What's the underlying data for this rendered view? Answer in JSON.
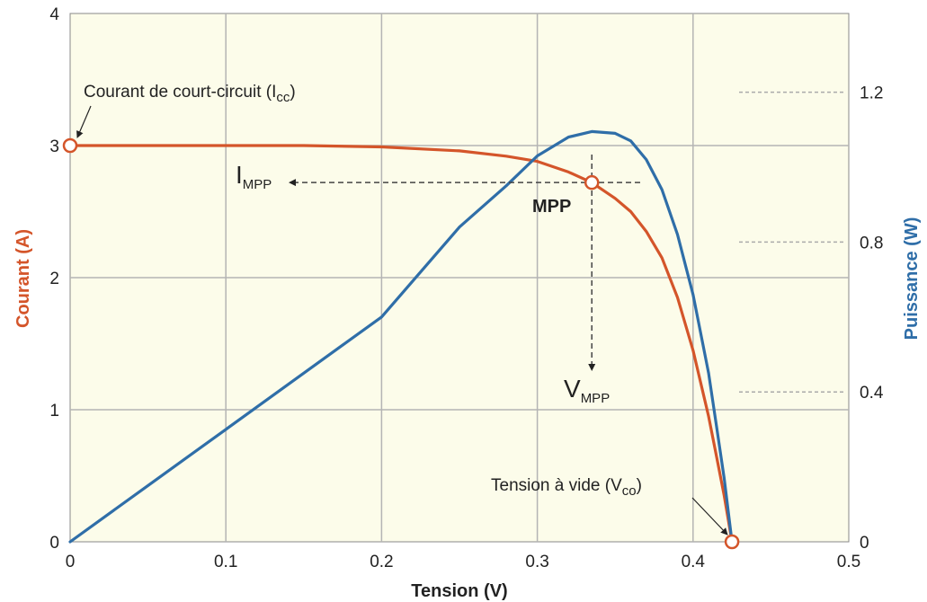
{
  "chart_data": {
    "type": "line",
    "xlabel": "Tension (V)",
    "ylabel": "Courant (A)",
    "y2label": "Puissance (W)",
    "xlim": [
      0,
      0.5
    ],
    "ylim": [
      0,
      4
    ],
    "y2lim": [
      0,
      1.41
    ],
    "x_ticks": [
      "0",
      "0.1",
      "0.2",
      "0.3",
      "0.4",
      "0.5"
    ],
    "y_ticks": [
      "0",
      "1",
      "2",
      "3",
      "4"
    ],
    "y2_ticks": [
      "0",
      "0.4",
      "0.8",
      "1.2"
    ],
    "grid": true,
    "colors": {
      "current": "#d4552a",
      "power": "#2f6ea8",
      "background": "#fcfcea",
      "grid": "#b4b4b4"
    },
    "series": [
      {
        "axis": "left",
        "color": "#d4552a",
        "x": [
          0,
          0.05,
          0.1,
          0.15,
          0.2,
          0.25,
          0.28,
          0.3,
          0.32,
          0.335,
          0.35,
          0.36,
          0.37,
          0.38,
          0.39,
          0.4,
          0.41,
          0.415,
          0.42,
          0.425
        ],
        "y": [
          3.0,
          3.0,
          3.0,
          3.0,
          2.99,
          2.96,
          2.92,
          2.88,
          2.8,
          2.72,
          2.6,
          2.5,
          2.35,
          2.15,
          1.85,
          1.45,
          0.95,
          0.65,
          0.35,
          0.0
        ]
      },
      {
        "axis": "right",
        "color": "#2f6ea8",
        "x": [
          0,
          0.05,
          0.1,
          0.15,
          0.2,
          0.25,
          0.28,
          0.3,
          0.32,
          0.335,
          0.35,
          0.36,
          0.37,
          0.38,
          0.39,
          0.4,
          0.41,
          0.415,
          0.42,
          0.425
        ],
        "y": [
          0.0,
          0.15,
          0.3,
          0.45,
          0.6,
          0.84,
          0.95,
          1.03,
          1.08,
          1.095,
          1.09,
          1.07,
          1.02,
          0.94,
          0.82,
          0.66,
          0.45,
          0.31,
          0.17,
          0.0
        ]
      }
    ],
    "points": [
      {
        "id": "icc",
        "x": 0,
        "y": 3.0
      },
      {
        "id": "mpp",
        "x": 0.335,
        "y": 2.72
      },
      {
        "id": "vco",
        "x": 0.425,
        "y": 0.0
      }
    ],
    "annotations": {
      "icc": {
        "text": "Courant de court-circuit (I",
        "sub": "cc",
        "close": ")"
      },
      "vco": {
        "text": "Tension à vide (V",
        "sub": "co",
        "close": ")"
      },
      "mpp": "MPP",
      "impp": {
        "main": "I",
        "sub": "MPP"
      },
      "vmpp": {
        "main": "V",
        "sub": "MPP"
      }
    }
  }
}
